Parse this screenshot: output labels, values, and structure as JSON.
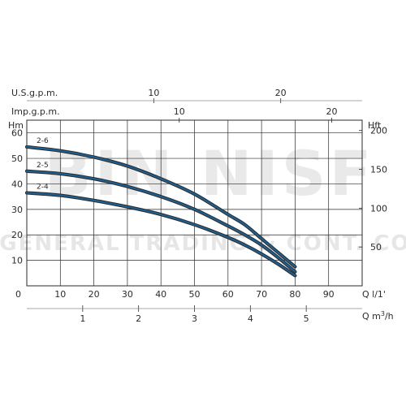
{
  "chart_data": {
    "type": "line",
    "x_primary": {
      "label": "Q l/1'",
      "ticks": [
        0,
        10,
        20,
        30,
        40,
        50,
        60,
        70,
        80,
        90
      ],
      "lim": [
        0,
        100
      ]
    },
    "x_m3h": {
      "label": "Q m³/h",
      "ticks": [
        1,
        2,
        3,
        4,
        5
      ]
    },
    "x_usgpm": {
      "label": "U.S.g.p.m.",
      "ticks": [
        10,
        20
      ]
    },
    "x_impgpm": {
      "label": "Imp.g.p.m.",
      "ticks": [
        10,
        20
      ]
    },
    "y_left": {
      "label": "Hm",
      "ticks": [
        10,
        20,
        30,
        40,
        50,
        60
      ],
      "lim": [
        0,
        65
      ],
      "zero_label": "0"
    },
    "y_right": {
      "label": "Hft",
      "ticks": [
        50,
        100,
        150,
        200
      ]
    },
    "grid": true,
    "series": [
      {
        "name": "2-6",
        "x": [
          0,
          10,
          20,
          30,
          40,
          50,
          60,
          65,
          70,
          75,
          80
        ],
        "y": [
          54.5,
          53,
          50.5,
          47,
          42,
          36,
          28,
          24,
          18.5,
          13,
          7.5
        ]
      },
      {
        "name": "2-5",
        "x": [
          0,
          10,
          20,
          30,
          40,
          50,
          60,
          65,
          70,
          75,
          80
        ],
        "y": [
          45,
          44,
          42,
          39,
          35,
          30,
          23.5,
          20,
          16,
          11,
          5.5
        ]
      },
      {
        "name": "2-4",
        "x": [
          0,
          10,
          20,
          30,
          40,
          50,
          60,
          65,
          70,
          75,
          80
        ],
        "y": [
          36.5,
          35.5,
          33.5,
          31,
          28,
          24,
          19,
          16,
          12.5,
          8.5,
          4
        ]
      }
    ],
    "curve_color": "#1f5f8f"
  },
  "watermark": {
    "line1": "BIN NISF",
    "line2": "GENERAL TRADING & CONT. CO."
  }
}
